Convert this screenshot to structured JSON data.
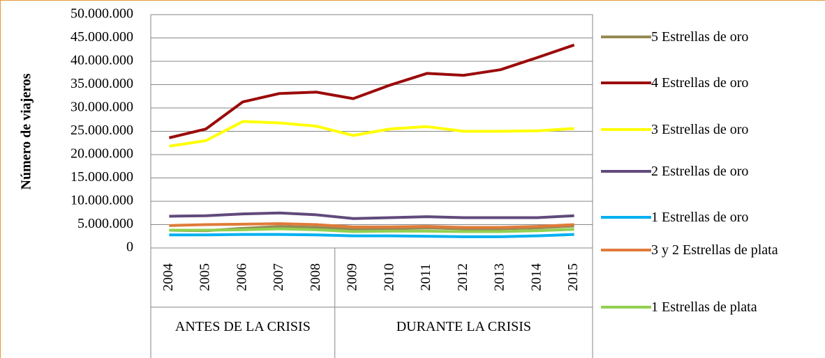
{
  "chart_data": {
    "type": "line",
    "y_label": "Número de viajeros",
    "categories": [
      "2004",
      "2005",
      "2006",
      "2007",
      "2008",
      "2009",
      "2010",
      "2011",
      "2012",
      "2013",
      "2014",
      "2015"
    ],
    "groups": [
      {
        "label": "ANTES DE LA CRISIS",
        "from": "2004",
        "to": "2008"
      },
      {
        "label": "DURANTE LA CRISIS",
        "from": "2009",
        "to": "2015"
      }
    ],
    "ylim": [
      0,
      50000000
    ],
    "yticks": [
      0,
      {
        "value": 5000000,
        "label": "5.000.000"
      },
      {
        "value": 10000000,
        "label": "10.000.000"
      },
      {
        "value": 15000000,
        "label": "15.000.000"
      },
      {
        "value": 20000000,
        "label": "20.000.000"
      },
      {
        "value": 25000000,
        "label": "25.000.000"
      },
      {
        "value": 30000000,
        "label": "30.000.000"
      },
      {
        "value": 35000000,
        "label": "35.000.000"
      },
      {
        "value": 40000000,
        "label": "40.000.000"
      },
      {
        "value": 45000000,
        "label": "45.000.000"
      },
      {
        "value": 50000000,
        "label": "50.000.000"
      }
    ],
    "grid": true,
    "legend": "right",
    "series": [
      {
        "name": "5 Estrellas de oro",
        "color": "#948a54",
        "values": [
          3800000,
          3700000,
          4200000,
          4600000,
          4400000,
          4000000,
          4100000,
          4300000,
          4100000,
          4100000,
          4300000,
          4700000
        ]
      },
      {
        "name": "4 Estrellas de oro",
        "color": "#9b0a0a",
        "values": [
          23600000,
          25500000,
          31300000,
          33100000,
          33400000,
          32000000,
          34900000,
          37400000,
          37000000,
          38200000,
          40800000,
          43500000
        ]
      },
      {
        "name": "3 Estrellas de oro",
        "color": "#ffff00",
        "values": [
          21800000,
          23000000,
          27100000,
          26800000,
          26100000,
          24100000,
          25500000,
          26000000,
          25000000,
          25000000,
          25100000,
          25600000
        ]
      },
      {
        "name": "2 Estrellas de oro",
        "color": "#604a7b",
        "values": [
          6800000,
          6900000,
          7300000,
          7500000,
          7100000,
          6300000,
          6500000,
          6700000,
          6500000,
          6500000,
          6500000,
          6900000
        ]
      },
      {
        "name": "1 Estrellas de oro",
        "color": "#00b0f0",
        "values": [
          2800000,
          2800000,
          2900000,
          2900000,
          2800000,
          2600000,
          2600000,
          2500000,
          2400000,
          2400000,
          2600000,
          2900000
        ]
      },
      {
        "name": "3 y 2 Estrellas de plata",
        "color": "#e07b39",
        "values": [
          4800000,
          5000000,
          5100000,
          5200000,
          5000000,
          4500000,
          4500000,
          4600000,
          4400000,
          4400000,
          4600000,
          5000000
        ]
      },
      {
        "name": "1 Estrellas de plata",
        "color": "#92d050",
        "values": [
          3800000,
          3800000,
          3900000,
          4100000,
          3900000,
          3500000,
          3600000,
          3600000,
          3500000,
          3500000,
          3700000,
          4000000
        ]
      }
    ]
  }
}
